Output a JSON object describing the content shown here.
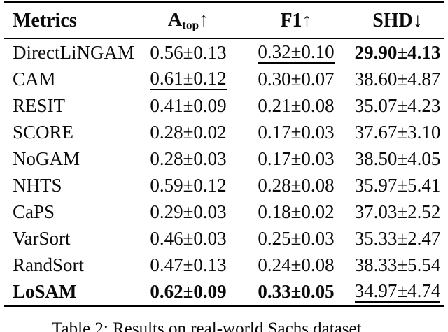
{
  "colors": {
    "text": "#0a0a0a",
    "background": "#ffffff",
    "rule": "#000000"
  },
  "table": {
    "headers": {
      "metric": "Metrics",
      "atop_base": "A",
      "atop_sub": "top",
      "atop_arrow": "↑",
      "f1": "F1",
      "f1_arrow": "↑",
      "shd": "SHD",
      "shd_arrow": "↓"
    },
    "rows": [
      {
        "metric": "DirectLiNGAM",
        "atop": "0.56±0.13",
        "f1": "0.32±0.10",
        "shd": "29.90±4.13"
      },
      {
        "metric": "CAM",
        "atop": "0.61±0.12",
        "f1": "0.30±0.07",
        "shd": "38.60±4.87"
      },
      {
        "metric": "RESIT",
        "atop": "0.41±0.09",
        "f1": "0.21±0.08",
        "shd": "35.07±4.23"
      },
      {
        "metric": "SCORE",
        "atop": "0.28±0.02",
        "f1": "0.17±0.03",
        "shd": "37.67±3.10"
      },
      {
        "metric": "NoGAM",
        "atop": "0.28±0.03",
        "f1": "0.17±0.03",
        "shd": "38.50±4.05"
      },
      {
        "metric": "NHTS",
        "atop": "0.59±0.12",
        "f1": "0.28±0.08",
        "shd": "35.97±5.41"
      },
      {
        "metric": "CaPS",
        "atop": "0.29±0.03",
        "f1": "0.18±0.02",
        "shd": "37.03±2.52"
      },
      {
        "metric": "VarSort",
        "atop": "0.46±0.03",
        "f1": "0.25±0.03",
        "shd": "35.33±2.47"
      },
      {
        "metric": "RandSort",
        "atop": "0.47±0.13",
        "f1": "0.24±0.08",
        "shd": "38.33±5.54"
      },
      {
        "metric": "LoSAM",
        "atop": "0.62±0.09",
        "f1": "0.33±0.05",
        "shd": "34.97±4.74"
      }
    ]
  },
  "caption": "Table 2: Results on real-world Sachs dataset"
}
